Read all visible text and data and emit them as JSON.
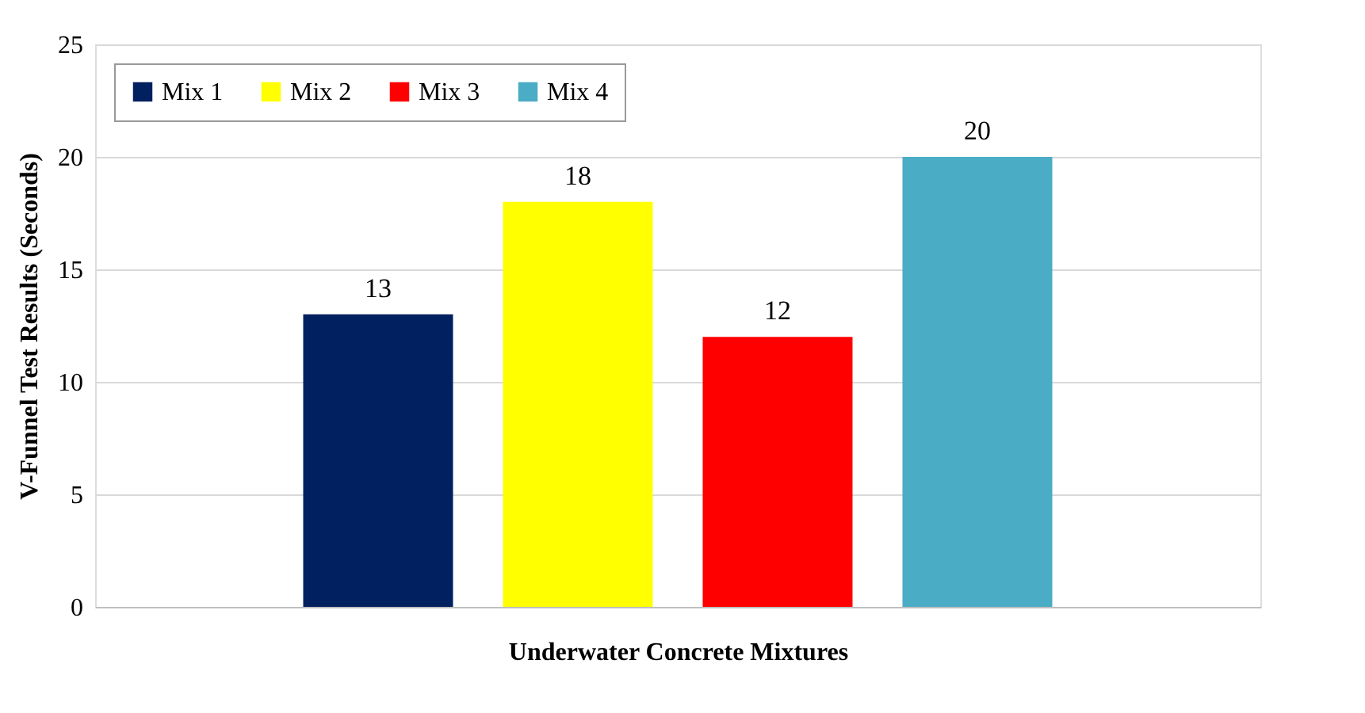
{
  "chart_data": {
    "type": "bar",
    "xlabel": "Underwater Concrete Mixtures",
    "ylabel": "V-Funnel Test Results (Seconds)",
    "categories": [
      null
    ],
    "series": [
      {
        "name": "Mix 1",
        "color": "#002060",
        "values": [
          13
        ]
      },
      {
        "name": "Mix 2",
        "color": "#ffff00",
        "values": [
          18
        ]
      },
      {
        "name": "Mix 3",
        "color": "#ff0000",
        "values": [
          12
        ]
      },
      {
        "name": "Mix 4",
        "color": "#4bacc6",
        "values": [
          20
        ]
      }
    ],
    "ylim": [
      0,
      25
    ],
    "yticks": [
      0,
      5,
      10,
      15,
      20,
      25
    ],
    "grid": "y",
    "legend": "top left",
    "data_labels": true,
    "tick_labels": "y"
  }
}
